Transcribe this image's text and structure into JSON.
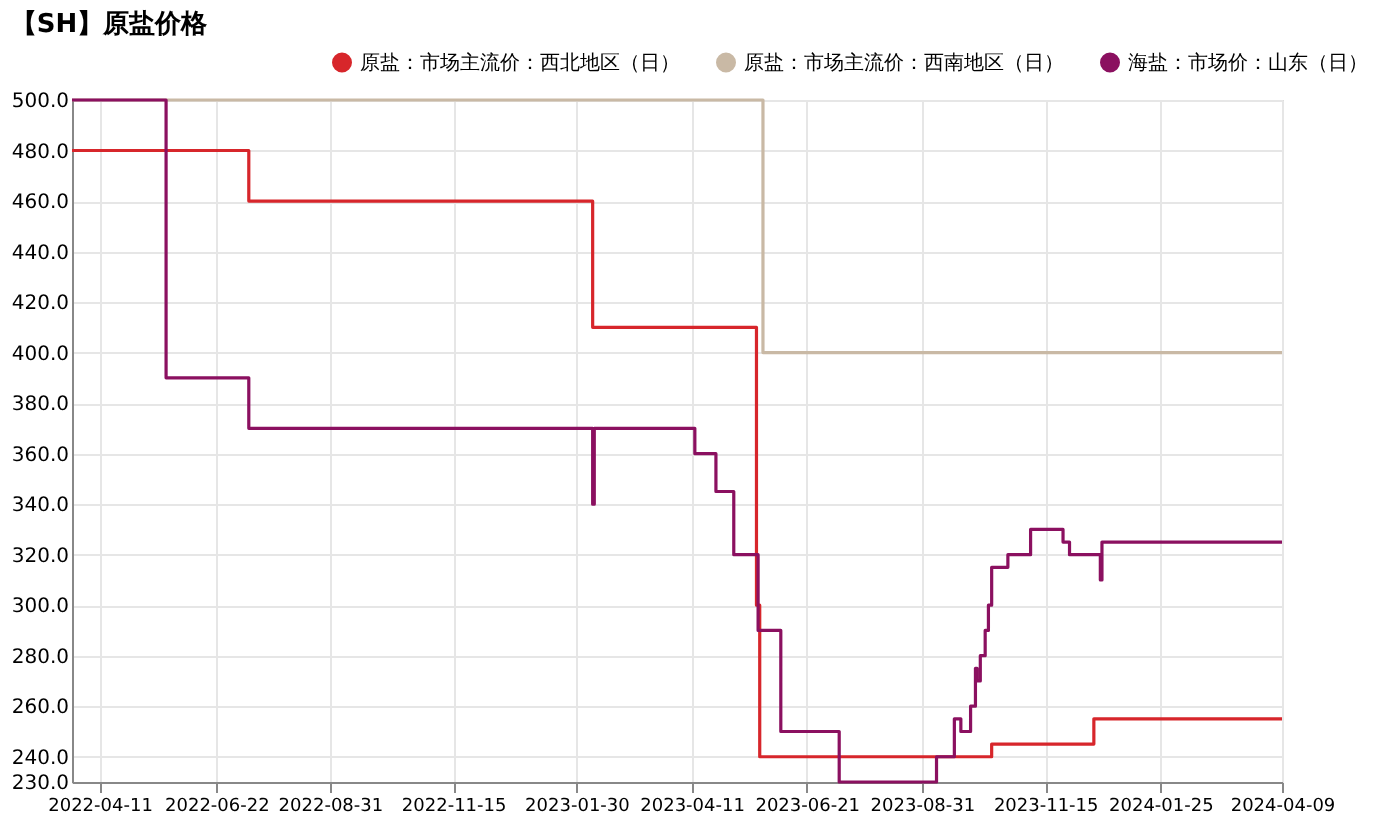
{
  "chart_data": {
    "type": "step",
    "title": "【SH】原盐价格",
    "xlim": [
      "2022-03-25",
      "2024-04-09"
    ],
    "xticks": [
      "2022-04-11",
      "2022-06-22",
      "2022-08-31",
      "2022-11-15",
      "2023-01-30",
      "2023-04-11",
      "2023-06-21",
      "2023-08-31",
      "2023-11-15",
      "2024-01-25",
      "2024-04-09"
    ],
    "ylim": [
      230,
      500
    ],
    "yticks": [
      {
        "value": 230,
        "label": "230.0"
      },
      {
        "value": 240,
        "label": "240.0"
      },
      {
        "value": 260,
        "label": "260.0"
      },
      {
        "value": 280,
        "label": "280.0"
      },
      {
        "value": 300,
        "label": "300.0"
      },
      {
        "value": 320,
        "label": "320.0"
      },
      {
        "value": 340,
        "label": "340.0"
      },
      {
        "value": 360,
        "label": "360.0"
      },
      {
        "value": 380,
        "label": "380.0"
      },
      {
        "value": 400,
        "label": "400.0"
      },
      {
        "value": 420,
        "label": "420.0"
      },
      {
        "value": 440,
        "label": "440.0"
      },
      {
        "value": 460,
        "label": "460.0"
      },
      {
        "value": 480,
        "label": "480.0"
      },
      {
        "value": 500,
        "label": "500.0"
      }
    ],
    "grid": true,
    "legend": "top right",
    "marker": "none",
    "line_style": "solid",
    "series": [
      {
        "name": "原盐：市场主流价：西北地区（日）",
        "color": "#d7262b",
        "x": [
          "2022-03-25",
          "2022-07-12",
          "2023-02-09",
          "2023-05-21",
          "2023-05-23",
          "2023-10-13",
          "2023-12-15",
          "2024-04-09"
        ],
        "values": [
          480,
          460,
          410,
          300,
          240,
          245,
          255,
          255
        ]
      },
      {
        "name": "原盐：市场主流价：西南地区（日）",
        "color": "#c9b9a5",
        "x": [
          "2022-03-25",
          "2023-05-25",
          "2024-04-09"
        ],
        "values": [
          500,
          400,
          400
        ]
      },
      {
        "name": "海盐：市场价：山东（日）",
        "color": "#8b1060",
        "x": [
          "2022-03-25",
          "2022-05-22",
          "2022-07-12",
          "2023-02-09",
          "2023-02-10",
          "2023-04-13",
          "2023-04-26",
          "2023-05-07",
          "2023-05-22",
          "2023-06-05",
          "2023-07-11",
          "2023-09-09",
          "2023-09-20",
          "2023-09-24",
          "2023-09-30",
          "2023-10-03",
          "2023-10-04",
          "2023-10-06",
          "2023-10-09",
          "2023-10-11",
          "2023-10-13",
          "2023-10-23",
          "2023-11-06",
          "2023-11-26",
          "2023-11-30",
          "2023-12-19",
          "2023-12-20",
          "2024-04-09"
        ],
        "values": [
          500,
          390,
          370,
          340,
          370,
          360,
          345,
          320,
          290,
          250,
          230,
          240,
          255,
          250,
          260,
          275,
          270,
          280,
          290,
          300,
          315,
          320,
          330,
          325,
          320,
          310,
          325,
          325
        ]
      }
    ]
  }
}
